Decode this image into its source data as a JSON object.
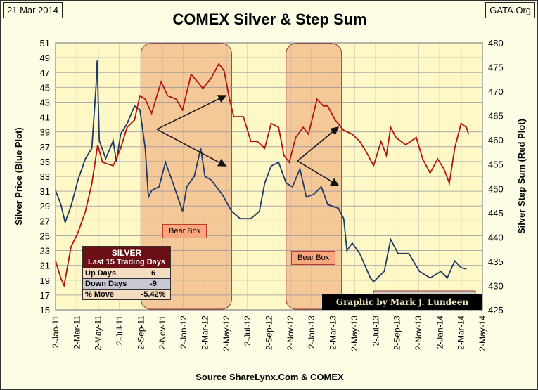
{
  "header": {
    "date": "21 Mar 2014",
    "site": "GATA.Org",
    "title": "COMEX Silver & Step Sum",
    "source": "Source ShareLynx.Com & COMEX"
  },
  "table": {
    "title": "SILVER",
    "subtitle": "Last 15 Trading Days",
    "rows": [
      {
        "label": "Up Days",
        "value": "6",
        "color": "#f3dcbf"
      },
      {
        "label": "Down Days",
        "value": "-9",
        "color": "#c8c8d2"
      },
      {
        "label": "% Move",
        "value": "-5.42%",
        "color": "#f3dcbf"
      }
    ]
  },
  "credit": "Graphic by Mark J. Lundeen",
  "annotations": {
    "bear_box_label": "Bear Box"
  },
  "colors": {
    "silver": "#1f3a66",
    "stepsum": "#b3140f",
    "bearbox": "#f3c08f"
  },
  "chart_data": {
    "type": "line",
    "title": "COMEX Silver & Step Sum",
    "xlabel": "",
    "ylabel": "Silver Price  (Blue Plot)",
    "y2label": "Silver Step Sum  (Red Plot)",
    "x_unit": "months since 2-Jan-11",
    "xticks": [
      "2-Jan-11",
      "2-Mar-11",
      "2-May-11",
      "2-Jul-11",
      "2-Sep-11",
      "2-Nov-11",
      "2-Jan-12",
      "2-Mar-12",
      "2-May-12",
      "2-Jul-12",
      "2-Sep-12",
      "2-Nov-12",
      "2-Jan-13",
      "2-Mar-13",
      "2-May-13",
      "2-Jul-13",
      "2-Sep-13",
      "2-Nov-13",
      "2-Jan-14",
      "2-Mar-14",
      "2-May-14"
    ],
    "xlim": [
      0,
      40
    ],
    "ylim": [
      15,
      51
    ],
    "y2lim": [
      425,
      480
    ],
    "yticks": [
      15,
      17,
      19,
      21,
      23,
      25,
      27,
      29,
      31,
      33,
      35,
      37,
      39,
      41,
      43,
      45,
      47,
      49,
      51
    ],
    "y2ticks": [
      425,
      430,
      435,
      440,
      445,
      450,
      455,
      460,
      465,
      470,
      475,
      480
    ],
    "grid": true,
    "bear_boxes": [
      [
        8,
        16.5
      ],
      [
        21.6,
        26.8
      ]
    ],
    "series": [
      {
        "name": "Silver Price",
        "axis": "left",
        "x": [
          0,
          0.5,
          0.9,
          1.45,
          2.1,
          2.8,
          3.4,
          3.8,
          3.9,
          4.1,
          4.7,
          5.4,
          5.7,
          6.1,
          6.7,
          7.4,
          7.9,
          8.4,
          8.7,
          9,
          9.7,
          10.3,
          11,
          11.9,
          12.3,
          13,
          13.6,
          14,
          14.6,
          15.6,
          16.5,
          17.3,
          18.3,
          19.1,
          19.6,
          20.2,
          20.9,
          21.6,
          22.2,
          22.9,
          23.5,
          24.2,
          24.9,
          25.5,
          26.5,
          27,
          27.3,
          27.8,
          28.5,
          29.5,
          29.8,
          30.8,
          31.4,
          32.1,
          33.1,
          34.1,
          35.1,
          36.1,
          36.7,
          37.4,
          38,
          38.5
        ],
        "y": [
          31.1,
          29.2,
          26.8,
          29,
          32.5,
          35.4,
          36.8,
          45.3,
          48.6,
          37.8,
          35.4,
          37.8,
          34.9,
          38.7,
          40.1,
          42.5,
          42,
          36.8,
          30.2,
          31.1,
          31.6,
          34.9,
          32.1,
          28.3,
          31.6,
          33,
          36.8,
          33,
          32.5,
          30.6,
          28.3,
          27.3,
          27.3,
          28.3,
          32.1,
          34.4,
          34.9,
          32.1,
          31.6,
          34,
          30.2,
          30.6,
          31.6,
          29.2,
          28.7,
          27.3,
          23,
          24,
          22.6,
          19.3,
          18.8,
          20.2,
          24.5,
          22.6,
          22.6,
          20.2,
          19.3,
          20.2,
          19.3,
          21.6,
          20.7,
          20.5
        ]
      },
      {
        "name": "Step Sum",
        "axis": "right",
        "x": [
          0,
          0.5,
          0.8,
          1.45,
          2.1,
          2.8,
          3.4,
          3.95,
          4.4,
          5.4,
          6.1,
          6.7,
          7.4,
          7.9,
          8.4,
          9,
          9.9,
          10.5,
          11.3,
          11.9,
          12.7,
          13.3,
          13.8,
          14.6,
          15.3,
          15.8,
          16.3,
          16.7,
          17.6,
          18.3,
          18.9,
          19.6,
          20.2,
          20.9,
          21.4,
          21.9,
          22.5,
          23.2,
          23.7,
          24.5,
          25.1,
          25.5,
          26.2,
          27,
          27.8,
          28.5,
          29.1,
          29.8,
          30.5,
          31,
          31.4,
          31.9,
          32.8,
          33.8,
          34.4,
          35.1,
          35.8,
          36.4,
          36.9,
          37.4,
          38,
          38.5,
          38.7
        ],
        "y": [
          435.1,
          431.5,
          430,
          438,
          440.9,
          445.3,
          451,
          459,
          455.4,
          454.7,
          458.3,
          462.6,
          464.1,
          469.1,
          468.4,
          465.5,
          472,
          469.1,
          468.4,
          466.2,
          473.5,
          472,
          470.6,
          472.8,
          475.7,
          474.2,
          468.4,
          464.8,
          464.8,
          459.7,
          459.7,
          458.3,
          463.4,
          462.6,
          456.8,
          455.4,
          460.5,
          462.6,
          461.2,
          468.4,
          467,
          467,
          464.1,
          462,
          461.2,
          459.7,
          457.6,
          454.7,
          459.7,
          456.8,
          462.6,
          460.5,
          459,
          460.5,
          456.1,
          453.2,
          456.1,
          454,
          451.1,
          458.3,
          463.4,
          462.6,
          461.2
        ]
      }
    ]
  }
}
